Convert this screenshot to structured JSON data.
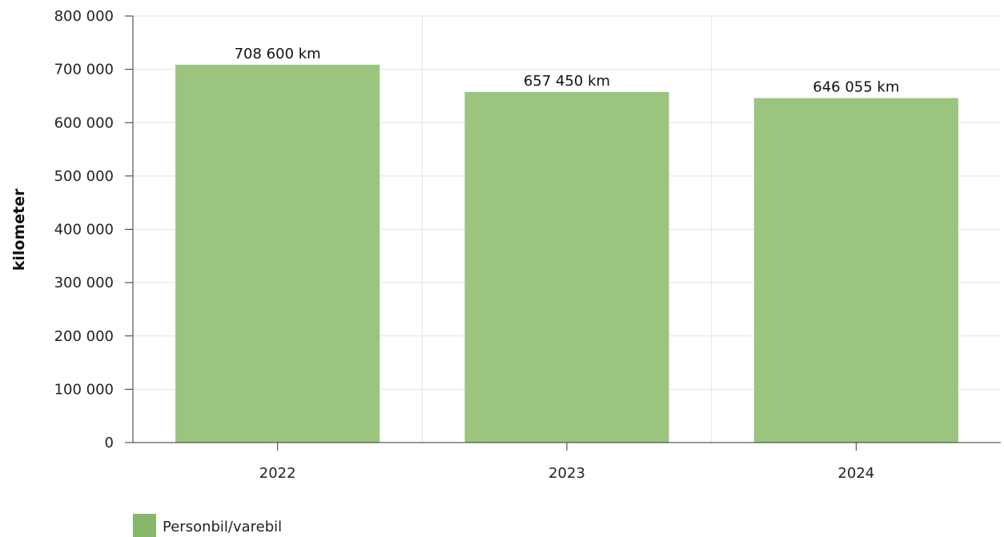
{
  "chart_data": {
    "type": "bar",
    "categories": [
      "2022",
      "2023",
      "2024"
    ],
    "series": [
      {
        "name": "Personbil/varebil",
        "values": [
          708600,
          657450,
          646055
        ],
        "data_labels": [
          "708 600 km",
          "657 450 km",
          "646 055 km"
        ]
      }
    ],
    "xlabel": "",
    "ylabel": "kilometer",
    "ylim": [
      0,
      800000
    ],
    "yticks": [
      0,
      100000,
      200000,
      300000,
      400000,
      500000,
      600000,
      700000,
      800000
    ],
    "ytick_labels": [
      "0",
      "100 000",
      "200 000",
      "300 000",
      "400 000",
      "500 000",
      "600 000",
      "700 000",
      "800 000"
    ],
    "grid": true,
    "legend_position": "bottom-left",
    "colors": {
      "bar": "#9bc47f",
      "legend_swatch": "#87b86a",
      "grid": "#e3e3e3",
      "axis": "#333333"
    }
  }
}
